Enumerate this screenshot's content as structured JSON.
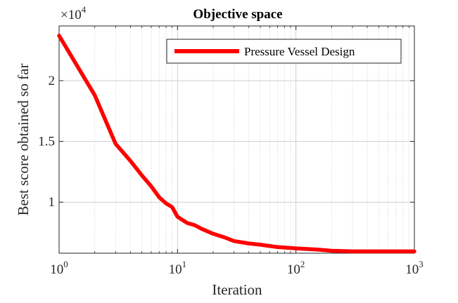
{
  "chart_data": {
    "type": "line",
    "title": "Objective space",
    "xlabel": "Iteration",
    "ylabel": "Best score obtained so far",
    "xscale": "log",
    "xlim": [
      1,
      1000
    ],
    "ylim": [
      5800,
      24500
    ],
    "grid": true,
    "legend_position": "top-right",
    "x_ticks": [
      {
        "value": 1,
        "base": "10",
        "exp": "0"
      },
      {
        "value": 10,
        "base": "10",
        "exp": "1"
      },
      {
        "value": 100,
        "base": "10",
        "exp": "2"
      },
      {
        "value": 1000,
        "base": "10",
        "exp": "3"
      }
    ],
    "y_ticks": [
      {
        "value": 10000,
        "label": "1"
      },
      {
        "value": 15000,
        "label": "1.5"
      },
      {
        "value": 20000,
        "label": "2"
      }
    ],
    "y_multiplier": {
      "base": "×10",
      "exp": "4"
    },
    "series": [
      {
        "name": "Pressure Vessel  Design",
        "color": "#ff0000",
        "x": [
          1,
          2,
          3,
          4,
          5,
          6,
          7,
          8,
          9,
          10,
          12,
          14,
          16,
          20,
          25,
          30,
          40,
          50,
          70,
          100,
          150,
          200,
          300,
          500,
          1000
        ],
        "y": [
          23700,
          18800,
          14800,
          13400,
          12200,
          11300,
          10400,
          9900,
          9600,
          8800,
          8300,
          8100,
          7800,
          7400,
          7100,
          6800,
          6600,
          6500,
          6300,
          6200,
          6100,
          6000,
          5950,
          5950,
          5950
        ]
      }
    ]
  }
}
